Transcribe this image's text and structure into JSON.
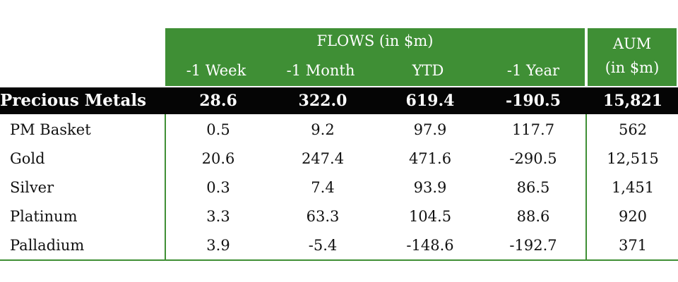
{
  "chart_data": {
    "type": "table",
    "header": {
      "flows_group": "FLOWS (in $m)",
      "columns": [
        "-1 Week",
        "-1 Month",
        "YTD",
        "-1 Year"
      ],
      "aum_line1": "AUM",
      "aum_line2": "(in $m)"
    },
    "total": {
      "label": "Precious Metals",
      "values": [
        "28.6",
        "322.0",
        "619.4",
        "-190.5",
        "15,821"
      ]
    },
    "rows": [
      {
        "label": "PM Basket",
        "values": [
          "0.5",
          "9.2",
          "97.9",
          "117.7",
          "562"
        ]
      },
      {
        "label": "Gold",
        "values": [
          "20.6",
          "247.4",
          "471.6",
          "-290.5",
          "12,515"
        ]
      },
      {
        "label": "Silver",
        "values": [
          "0.3",
          "7.4",
          "93.9",
          "86.5",
          "1,451"
        ]
      },
      {
        "label": "Platinum",
        "values": [
          "3.3",
          "63.3",
          "104.5",
          "88.6",
          "920"
        ]
      },
      {
        "label": "Palladium",
        "values": [
          "3.9",
          "-5.4",
          "-148.6",
          "-192.7",
          "371"
        ]
      }
    ]
  },
  "colors": {
    "header_green": "#3f8f35",
    "total_bar": "#050505",
    "header_text": "#ffffff"
  }
}
